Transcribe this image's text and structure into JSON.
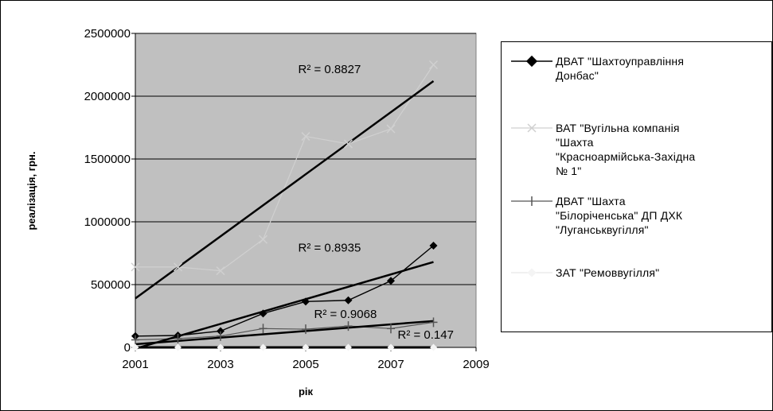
{
  "chart_data": {
    "type": "line",
    "title": "",
    "xlabel": "рік",
    "ylabel": "реалізація, грн.",
    "xlim": [
      2001,
      2009
    ],
    "ylim": [
      0,
      2500000
    ],
    "x_ticks": [
      "2001",
      "2003",
      "2005",
      "2007",
      "2009"
    ],
    "y_ticks": [
      "0",
      "500000",
      "1000000",
      "1500000",
      "2000000",
      "2500000"
    ],
    "grid": true,
    "plot_background": "#c0c0c0",
    "legend_position": "right",
    "x": [
      2001,
      2002,
      2003,
      2004,
      2005,
      2006,
      2007,
      2008
    ],
    "series": [
      {
        "name": "ДВАТ \"Шахтоуправління Донбас\"",
        "color": "#000000",
        "marker": "diamond",
        "values": [
          90000,
          95000,
          130000,
          270000,
          365000,
          375000,
          530000,
          810000
        ]
      },
      {
        "name": "ВАТ \"Вугільна компанія \"Шахта \"Красноармійська-Західна № 1\"",
        "color": "#d0d0d0",
        "marker": "x",
        "values": [
          640000,
          640000,
          610000,
          860000,
          1680000,
          1620000,
          1740000,
          2250000
        ]
      },
      {
        "name": "ДВАТ \"Шахта \"Білоріченська\" ДП ДХК \"Луганськвугілля\"",
        "color": "#555555",
        "marker": "plus",
        "values": [
          60000,
          70000,
          90000,
          150000,
          145000,
          170000,
          150000,
          200000
        ]
      },
      {
        "name": "ЗАТ \"Ремоввугілля\"",
        "color": "#ffffff",
        "marker": "diamond",
        "values": [
          0,
          0,
          0,
          0,
          0,
          0,
          0,
          0
        ]
      }
    ],
    "trendlines": [
      {
        "r2_label": "R² = 0.8827",
        "x": [
          2001,
          2008
        ],
        "y": [
          390000,
          2120000
        ]
      },
      {
        "r2_label": "R² = 0.8935",
        "x": [
          2001,
          2008
        ],
        "y": [
          -10000,
          680000
        ]
      },
      {
        "r2_label": "R² = 0.9068",
        "x": [
          2001,
          2008
        ],
        "y": [
          25000,
          210000
        ]
      },
      {
        "r2_label": "R² = 0.147",
        "x": [
          2001,
          2008
        ],
        "y": [
          0,
          0
        ]
      }
    ]
  },
  "legend": {
    "items": [
      {
        "label": "ДВАТ \"Шахтоуправління\nДонбас\""
      },
      {
        "label": "ВАТ \"Вугільна компанія\n\"Шахта\n\"Красноармійська-Західна\n№ 1\""
      },
      {
        "label": "ДВАТ \"Шахта\n\"Білоріченська\" ДП ДХК\n\"Луганськвугілля\""
      },
      {
        "label": "ЗАТ \"Ремоввугілля\""
      }
    ]
  }
}
